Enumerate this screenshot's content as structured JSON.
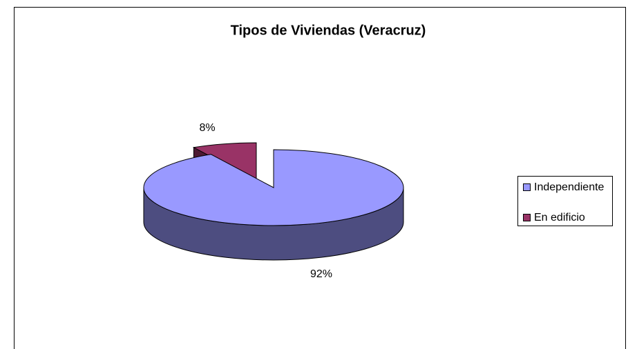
{
  "chart_data": {
    "type": "pie",
    "title": "Tipos de Viviendas (Veracruz)",
    "categories": [
      "Independiente",
      "En edificio"
    ],
    "values": [
      92,
      8
    ],
    "value_labels": [
      "92%",
      "8%"
    ],
    "colors": [
      "#9999ff",
      "#993366"
    ],
    "legend": "right"
  }
}
